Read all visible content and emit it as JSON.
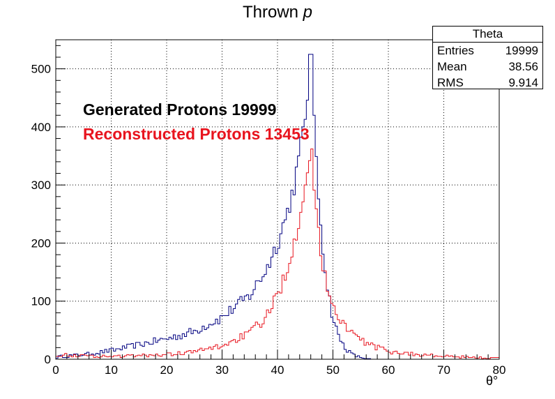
{
  "chart_data": {
    "type": "histogram",
    "title_text": "Thrown ",
    "title_italic": "p",
    "xlabel": "θ°",
    "ylabel": "",
    "xlim": [
      0,
      80
    ],
    "ylim": [
      0,
      550
    ],
    "x_ticks": [
      0,
      10,
      20,
      30,
      40,
      50,
      60,
      70,
      80
    ],
    "y_ticks": [
      0,
      100,
      200,
      300,
      400,
      500
    ],
    "grid": true,
    "bin_width": 0.4,
    "series": [
      {
        "color": "#000080",
        "peak_x": 46.0,
        "peak_value": 525,
        "curve_x": [
          0,
          5,
          10,
          15,
          20,
          25,
          30,
          35,
          38,
          40,
          42,
          43,
          44,
          45,
          46,
          47,
          48,
          49,
          50,
          51,
          52,
          53,
          54,
          55,
          56,
          57
        ],
        "curve_y": [
          4,
          8,
          15,
          25,
          35,
          48,
          72,
          110,
          155,
          200,
          260,
          300,
          350,
          420,
          525,
          330,
          210,
          125,
          70,
          40,
          22,
          12,
          6,
          3,
          1,
          0
        ]
      },
      {
        "color": "#e8141e",
        "peak_x": 46.3,
        "peak_value": 362,
        "curve_x": [
          0,
          5,
          10,
          15,
          20,
          25,
          30,
          35,
          38,
          40,
          42,
          43,
          44,
          45,
          46,
          47,
          48,
          50,
          52,
          55,
          58,
          60,
          65,
          70,
          75,
          80
        ],
        "curve_y": [
          8,
          6,
          5,
          6,
          8,
          13,
          23,
          45,
          72,
          110,
          165,
          200,
          250,
          310,
          362,
          260,
          160,
          92,
          60,
          32,
          20,
          14,
          8,
          5,
          3,
          2
        ]
      }
    ],
    "annotations": [
      {
        "text": "Generated Protons 19999",
        "color": "#000000"
      },
      {
        "text": "Reconstructed Protons 13453",
        "color": "#e8141e"
      }
    ],
    "stats_box": {
      "name": "Theta",
      "entries_label": "Entries",
      "entries_value": "19999",
      "mean_label": "Mean",
      "mean_value": "38.56",
      "rms_label": "RMS",
      "rms_value": "9.914"
    }
  }
}
